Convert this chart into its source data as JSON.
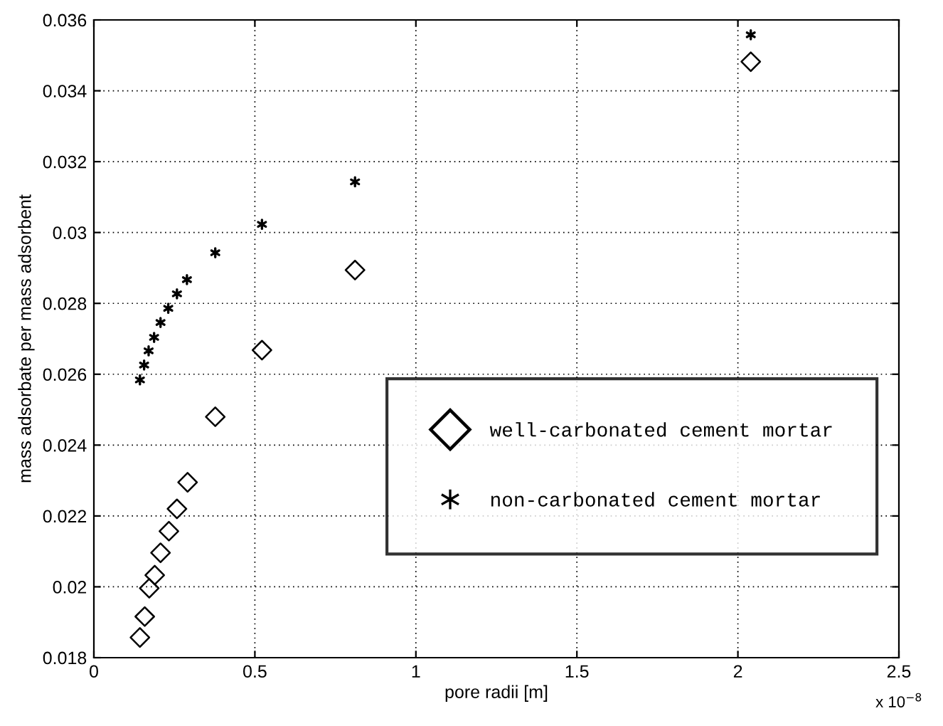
{
  "chart_data": {
    "type": "scatter",
    "xlabel": "pore radii [m]",
    "ylabel": "mass adsorbate per mass adsorbent",
    "annotations": [
      "x 10$^{−8}$"
    ],
    "series": [
      {
        "name": "well-carbonated cement mortar",
        "color": "#000000",
        "marker": "diamond",
        "x": [
          0.143,
          0.158,
          0.172,
          0.189,
          0.207,
          0.233,
          0.258,
          0.291,
          0.377,
          0.522,
          0.811,
          2.04
        ],
        "values": [
          0.01857,
          0.01916,
          0.01996,
          0.02033,
          0.02096,
          0.02157,
          0.0222,
          0.02295,
          0.0248,
          0.02668,
          0.02894,
          0.03482
        ]
      },
      {
        "name": "non-carbonated cement mortar",
        "color": "#000000",
        "marker": "cross",
        "x": [
          0.143,
          0.156,
          0.17,
          0.187,
          0.207,
          0.231,
          0.258,
          0.289,
          0.377,
          0.522,
          0.811,
          2.04
        ],
        "values": [
          0.02584,
          0.02626,
          0.02666,
          0.02704,
          0.02746,
          0.02786,
          0.02827,
          0.02867,
          0.02943,
          0.03023,
          0.03143,
          0.03558
        ]
      }
    ],
    "xlim": [
      0,
      2.5
    ],
    "xticks": [
      0,
      0.5,
      1,
      1.5,
      2,
      2.5
    ],
    "ylim": [
      0.018,
      0.036
    ],
    "yticks": [
      0.018,
      0.02,
      0.022,
      0.024,
      0.026,
      0.028,
      0.03,
      0.032,
      0.034,
      0.036
    ],
    "grid": true,
    "legend": "right"
  }
}
